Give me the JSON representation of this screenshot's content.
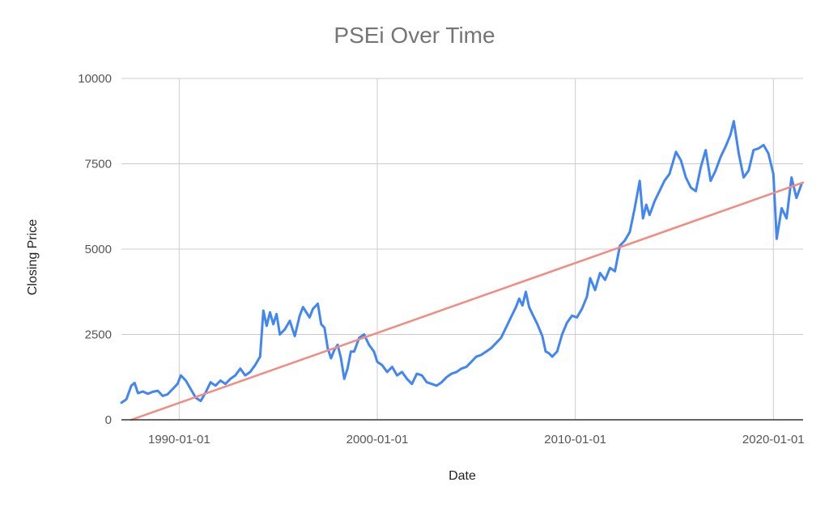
{
  "chart_data": {
    "type": "line",
    "title": "PSEi Over Time",
    "xlabel": "Date",
    "ylabel": "Closing Price",
    "x_ticks": [
      "1990-01-01",
      "2000-01-01",
      "2010-01-01",
      "2020-01-01"
    ],
    "y_ticks": [
      "0",
      "2500",
      "5000",
      "7500",
      "10000"
    ],
    "xlim": [
      "1987-02-01",
      "2021-07-01"
    ],
    "ylim": [
      0,
      10000
    ],
    "grid": true,
    "legend": "none",
    "series": [
      {
        "kind": "data",
        "color": "#4285f4",
        "points": [
          [
            "1987-02-01",
            500
          ],
          [
            "1987-05-01",
            600
          ],
          [
            "1987-08-01",
            1000
          ],
          [
            "1987-10-01",
            1080
          ],
          [
            "1987-12-01",
            780
          ],
          [
            "1988-03-01",
            830
          ],
          [
            "1988-06-01",
            760
          ],
          [
            "1988-09-01",
            820
          ],
          [
            "1988-12-01",
            850
          ],
          [
            "1989-03-01",
            700
          ],
          [
            "1989-06-01",
            750
          ],
          [
            "1989-09-01",
            900
          ],
          [
            "1989-12-01",
            1050
          ],
          [
            "1990-02-01",
            1300
          ],
          [
            "1990-05-01",
            1150
          ],
          [
            "1990-08-01",
            900
          ],
          [
            "1990-11-01",
            650
          ],
          [
            "1991-02-01",
            550
          ],
          [
            "1991-05-01",
            800
          ],
          [
            "1991-08-01",
            1100
          ],
          [
            "1991-11-01",
            1000
          ],
          [
            "1992-02-01",
            1150
          ],
          [
            "1992-05-01",
            1050
          ],
          [
            "1992-08-01",
            1200
          ],
          [
            "1992-11-01",
            1300
          ],
          [
            "1993-02-01",
            1500
          ],
          [
            "1993-05-01",
            1300
          ],
          [
            "1993-08-01",
            1400
          ],
          [
            "1993-11-01",
            1600
          ],
          [
            "1994-02-01",
            1850
          ],
          [
            "1994-04-01",
            3200
          ],
          [
            "1994-06-01",
            2750
          ],
          [
            "1994-08-01",
            3150
          ],
          [
            "1994-10-01",
            2800
          ],
          [
            "1994-12-01",
            3100
          ],
          [
            "1995-02-01",
            2500
          ],
          [
            "1995-05-01",
            2650
          ],
          [
            "1995-08-01",
            2900
          ],
          [
            "1995-11-01",
            2450
          ],
          [
            "1996-02-01",
            3050
          ],
          [
            "1996-04-01",
            3300
          ],
          [
            "1996-06-01",
            3150
          ],
          [
            "1996-08-01",
            3000
          ],
          [
            "1996-10-01",
            3250
          ],
          [
            "1997-01-01",
            3400
          ],
          [
            "1997-03-01",
            2800
          ],
          [
            "1997-05-01",
            2700
          ],
          [
            "1997-07-01",
            2100
          ],
          [
            "1997-09-01",
            1800
          ],
          [
            "1997-11-01",
            2050
          ],
          [
            "1998-01-01",
            2200
          ],
          [
            "1998-03-01",
            1800
          ],
          [
            "1998-05-01",
            1200
          ],
          [
            "1998-07-01",
            1500
          ],
          [
            "1998-09-01",
            2000
          ],
          [
            "1998-11-01",
            2000
          ],
          [
            "1999-02-01",
            2400
          ],
          [
            "1999-05-01",
            2500
          ],
          [
            "1999-08-01",
            2200
          ],
          [
            "1999-11-01",
            2000
          ],
          [
            "2000-01-01",
            1700
          ],
          [
            "2000-04-01",
            1600
          ],
          [
            "2000-07-01",
            1400
          ],
          [
            "2000-10-01",
            1550
          ],
          [
            "2001-01-01",
            1300
          ],
          [
            "2001-04-01",
            1400
          ],
          [
            "2001-07-01",
            1200
          ],
          [
            "2001-10-01",
            1050
          ],
          [
            "2002-01-01",
            1350
          ],
          [
            "2002-04-01",
            1300
          ],
          [
            "2002-07-01",
            1100
          ],
          [
            "2002-10-01",
            1050
          ],
          [
            "2003-01-01",
            1000
          ],
          [
            "2003-04-01",
            1100
          ],
          [
            "2003-07-01",
            1250
          ],
          [
            "2003-10-01",
            1350
          ],
          [
            "2004-01-01",
            1400
          ],
          [
            "2004-04-01",
            1500
          ],
          [
            "2004-07-01",
            1550
          ],
          [
            "2004-10-01",
            1700
          ],
          [
            "2005-01-01",
            1850
          ],
          [
            "2005-04-01",
            1900
          ],
          [
            "2005-07-01",
            2000
          ],
          [
            "2005-10-01",
            2100
          ],
          [
            "2006-01-01",
            2250
          ],
          [
            "2006-04-01",
            2400
          ],
          [
            "2006-07-01",
            2700
          ],
          [
            "2006-10-01",
            3000
          ],
          [
            "2007-01-01",
            3300
          ],
          [
            "2007-03-01",
            3550
          ],
          [
            "2007-05-01",
            3350
          ],
          [
            "2007-07-01",
            3750
          ],
          [
            "2007-09-01",
            3300
          ],
          [
            "2007-11-01",
            3100
          ],
          [
            "2008-02-01",
            2800
          ],
          [
            "2008-05-01",
            2450
          ],
          [
            "2008-07-01",
            2000
          ],
          [
            "2008-09-01",
            1950
          ],
          [
            "2008-11-01",
            1850
          ],
          [
            "2009-02-01",
            2000
          ],
          [
            "2009-05-01",
            2500
          ],
          [
            "2009-08-01",
            2850
          ],
          [
            "2009-11-01",
            3050
          ],
          [
            "2010-02-01",
            3000
          ],
          [
            "2010-05-01",
            3250
          ],
          [
            "2010-08-01",
            3600
          ],
          [
            "2010-10-01",
            4150
          ],
          [
            "2011-01-01",
            3800
          ],
          [
            "2011-04-01",
            4300
          ],
          [
            "2011-07-01",
            4100
          ],
          [
            "2011-10-01",
            4450
          ],
          [
            "2012-01-01",
            4350
          ],
          [
            "2012-04-01",
            5100
          ],
          [
            "2012-07-01",
            5250
          ],
          [
            "2012-10-01",
            5500
          ],
          [
            "2013-01-01",
            6200
          ],
          [
            "2013-04-01",
            7000
          ],
          [
            "2013-06-01",
            5900
          ],
          [
            "2013-08-01",
            6300
          ],
          [
            "2013-10-01",
            6000
          ],
          [
            "2014-01-01",
            6400
          ],
          [
            "2014-04-01",
            6700
          ],
          [
            "2014-07-01",
            7000
          ],
          [
            "2014-10-01",
            7200
          ],
          [
            "2015-02-01",
            7850
          ],
          [
            "2015-05-01",
            7600
          ],
          [
            "2015-08-01",
            7100
          ],
          [
            "2015-11-01",
            6800
          ],
          [
            "2016-02-01",
            6700
          ],
          [
            "2016-05-01",
            7400
          ],
          [
            "2016-08-01",
            7900
          ],
          [
            "2016-11-01",
            7000
          ],
          [
            "2017-02-01",
            7300
          ],
          [
            "2017-05-01",
            7700
          ],
          [
            "2017-08-01",
            8000
          ],
          [
            "2017-11-01",
            8350
          ],
          [
            "2018-01-01",
            8750
          ],
          [
            "2018-04-01",
            7800
          ],
          [
            "2018-07-01",
            7100
          ],
          [
            "2018-10-01",
            7300
          ],
          [
            "2019-01-01",
            7900
          ],
          [
            "2019-04-01",
            7950
          ],
          [
            "2019-07-01",
            8050
          ],
          [
            "2019-10-01",
            7800
          ],
          [
            "2020-01-01",
            7200
          ],
          [
            "2020-03-01",
            5300
          ],
          [
            "2020-06-01",
            6200
          ],
          [
            "2020-09-01",
            5900
          ],
          [
            "2020-12-01",
            7100
          ],
          [
            "2021-03-01",
            6500
          ],
          [
            "2021-06-01",
            6900
          ]
        ]
      },
      {
        "kind": "trendline",
        "color": "#f28b82",
        "points": [
          [
            "1987-08-01",
            0
          ],
          [
            "2021-07-01",
            6950
          ]
        ]
      }
    ]
  }
}
